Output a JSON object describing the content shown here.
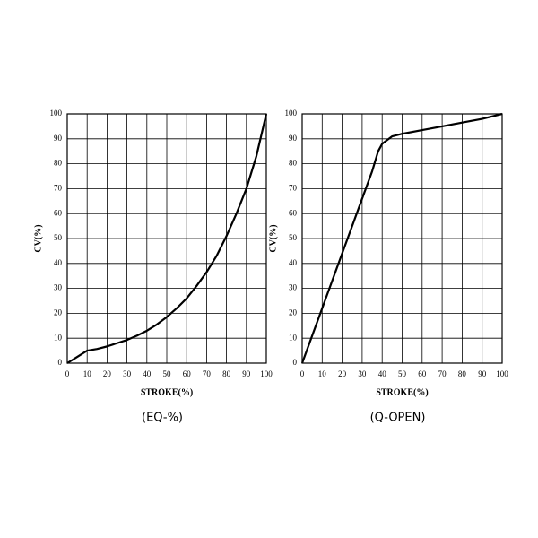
{
  "chart_data": [
    {
      "type": "line",
      "xlabel": "STROKE(%)",
      "ylabel": "CV(%)",
      "caption": "(EQ-%)",
      "x": [
        0,
        5,
        10,
        15,
        20,
        25,
        30,
        35,
        40,
        45,
        50,
        55,
        60,
        65,
        70,
        75,
        80,
        85,
        90,
        95,
        100
      ],
      "values": [
        0,
        2.5,
        5,
        5.7,
        6.7,
        8,
        9.3,
        11,
        13,
        15.5,
        18.5,
        22,
        26,
        31,
        36.5,
        43,
        51,
        60,
        70,
        83,
        100
      ],
      "color": "#000000",
      "xlim": [
        0,
        100
      ],
      "ylim": [
        0,
        100
      ],
      "xticks": [
        0,
        10,
        20,
        30,
        40,
        50,
        60,
        70,
        80,
        90,
        100
      ],
      "yticks": [
        0,
        10,
        20,
        30,
        40,
        50,
        60,
        70,
        80,
        90,
        100
      ],
      "grid": true
    },
    {
      "type": "line",
      "xlabel": "STROKE(%)",
      "ylabel": "CV(%)",
      "caption": "(Q-OPEN)",
      "x": [
        0,
        10,
        20,
        30,
        35,
        38,
        40,
        45,
        50,
        60,
        70,
        80,
        90,
        100
      ],
      "values": [
        0,
        22,
        44,
        66,
        77,
        85,
        88,
        91,
        92,
        93.5,
        95,
        96.5,
        98,
        100
      ],
      "color": "#000000",
      "xlim": [
        0,
        100
      ],
      "ylim": [
        0,
        100
      ],
      "xticks": [
        0,
        10,
        20,
        30,
        40,
        50,
        60,
        70,
        80,
        90,
        100
      ],
      "yticks": [
        0,
        10,
        20,
        30,
        40,
        50,
        60,
        70,
        80,
        90,
        100
      ],
      "grid": true
    }
  ]
}
